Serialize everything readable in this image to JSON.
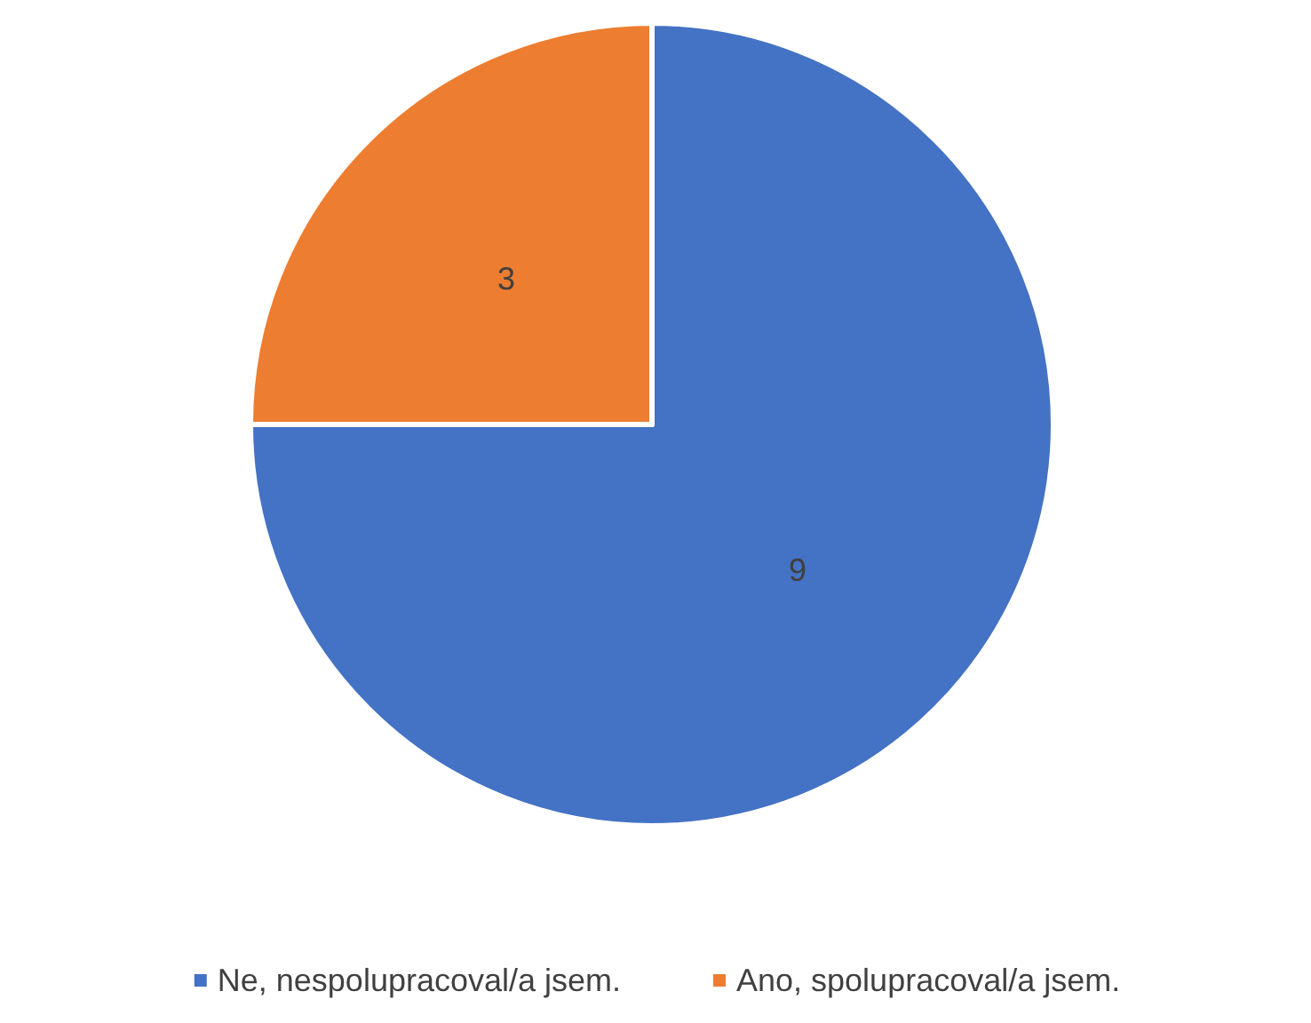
{
  "chart_data": {
    "type": "pie",
    "categories": [
      "Ne, nespolupracoval/a jsem.",
      "Ano, spolupracoval/a jsem."
    ],
    "values": [
      9,
      3
    ],
    "colors": [
      "#4472c4",
      "#ed7d31"
    ],
    "data_labels": true,
    "legend": "bottom"
  }
}
